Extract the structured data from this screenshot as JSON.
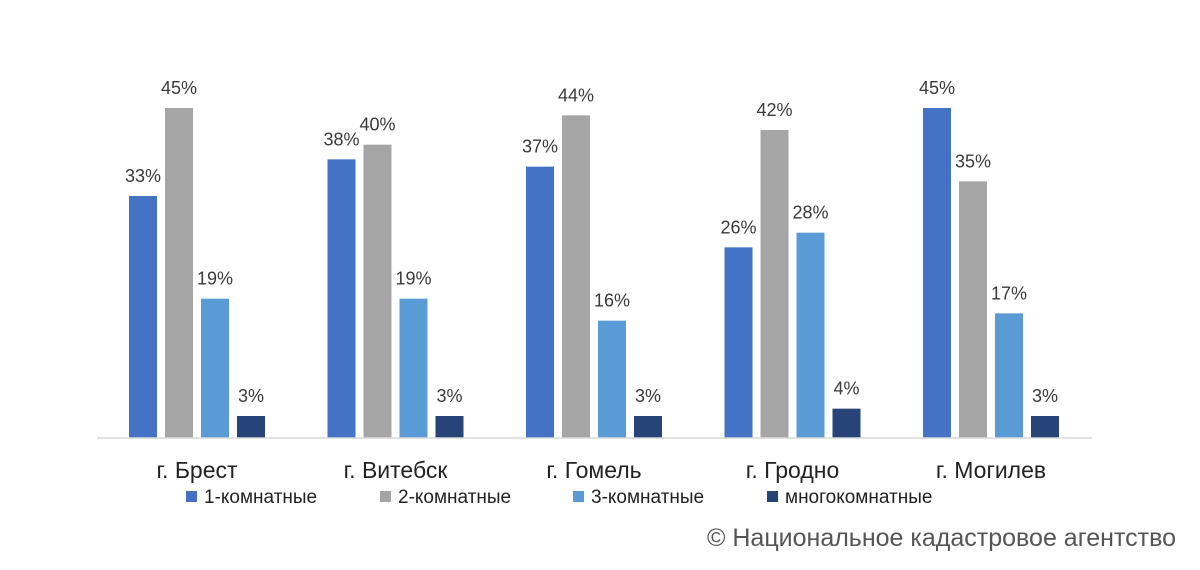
{
  "chart_data": {
    "type": "bar",
    "categories": [
      "г. Брест",
      "г. Витебск",
      "г. Гомель",
      "г. Гродно",
      "г. Могилев"
    ],
    "series": [
      {
        "name": "1-комнатные",
        "color": "#4472c4",
        "values": [
          33,
          38,
          37,
          26,
          45
        ],
        "labels": [
          "33%",
          "38%",
          "37%",
          "26%",
          "45%"
        ]
      },
      {
        "name": "2-комнатные",
        "color": "#a5a5a5",
        "values": [
          45,
          40,
          44,
          42,
          35
        ],
        "labels": [
          "45%",
          "40%",
          "44%",
          "42%",
          "35%"
        ]
      },
      {
        "name": "3-комнатные",
        "color": "#5b9bd5",
        "values": [
          19,
          19,
          16,
          28,
          17
        ],
        "labels": [
          "19%",
          "19%",
          "16%",
          "28%",
          "17%"
        ]
      },
      {
        "name": "многокомнатные",
        "color": "#264478",
        "values": [
          3,
          3,
          3,
          4,
          3
        ],
        "labels": [
          "3%",
          "3%",
          "3%",
          "4%",
          "3%"
        ]
      }
    ],
    "ylim": [
      0,
      45
    ],
    "grid": false,
    "legend": "bottom"
  },
  "source": {
    "text": "© Национальное кадастровое агентство"
  }
}
